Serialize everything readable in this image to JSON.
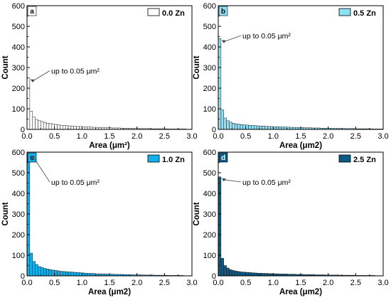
{
  "chart_data": [
    {
      "type": "bar",
      "panel_label": "a",
      "legend": "0.0 Zn",
      "color": "#ffffff",
      "annotation": "up to 0.05 μm²",
      "xlabel": "Area (μm²)",
      "ylabel": "Count",
      "xlim": [
        0,
        3
      ],
      "ylim": [
        0,
        600
      ],
      "xticks": [
        "0.0",
        "0.5",
        "1.0",
        "1.5",
        "2.0",
        "2.5",
        "3.0"
      ],
      "yticks": [
        "0",
        "100",
        "200",
        "300",
        "400",
        "500",
        "600"
      ],
      "bin_width": 0.05,
      "values": [
        250,
        88,
        60,
        48,
        42,
        38,
        34,
        30,
        28,
        26,
        24,
        22,
        20,
        19,
        18,
        17,
        16,
        15,
        14,
        14,
        13,
        12,
        12,
        11,
        10,
        10,
        9,
        9,
        8,
        8,
        8,
        7,
        7,
        7,
        6,
        6,
        6,
        5,
        5,
        5,
        5,
        4,
        4,
        4,
        4,
        3,
        3,
        3,
        3,
        3,
        3,
        2,
        2,
        2,
        2,
        2,
        2,
        2,
        1,
        1
      ]
    },
    {
      "type": "bar",
      "panel_label": "b",
      "legend": "0.5 Zn",
      "color": "#8fe0f5",
      "annotation": "up to 0.05 μm²",
      "xlabel": "Area (μm2)",
      "ylabel": "Count",
      "xlim": [
        0,
        3
      ],
      "ylim": [
        0,
        600
      ],
      "xticks": [
        "0.0",
        "0.5",
        "1.0",
        "1.5",
        "2.0",
        "2.5",
        "3.0"
      ],
      "yticks": [
        "0",
        "100",
        "200",
        "300",
        "400",
        "500",
        "600"
      ],
      "bin_width": 0.05,
      "values": [
        440,
        95,
        55,
        42,
        35,
        30,
        27,
        25,
        23,
        22,
        21,
        20,
        19,
        18,
        17,
        16,
        16,
        15,
        14,
        14,
        13,
        13,
        12,
        12,
        11,
        11,
        10,
        10,
        9,
        9,
        9,
        8,
        8,
        8,
        7,
        7,
        7,
        6,
        6,
        6,
        6,
        5,
        5,
        5,
        5,
        4,
        4,
        4,
        4,
        4,
        3,
        3,
        3,
        3,
        3,
        3,
        2,
        2,
        2,
        2
      ]
    },
    {
      "type": "bar",
      "panel_label": "c",
      "legend": "1.0 Zn",
      "color": "#12b0ea",
      "annotation": "up to 0.05 μm²",
      "xlabel": "Area (μm2)",
      "ylabel": "Count",
      "xlim": [
        0,
        3
      ],
      "ylim": [
        0,
        600
      ],
      "xticks": [
        "0.0",
        "0.5",
        "1.0",
        "1.5",
        "2.0",
        "2.5",
        "3.0"
      ],
      "yticks": [
        "0",
        "100",
        "200",
        "300",
        "400",
        "500",
        "600"
      ],
      "bin_width": 0.05,
      "values": [
        590,
        110,
        70,
        55,
        45,
        40,
        36,
        33,
        30,
        28,
        26,
        24,
        22,
        21,
        20,
        19,
        18,
        17,
        16,
        15,
        14,
        13,
        12,
        12,
        11,
        10,
        10,
        9,
        9,
        8,
        8,
        8,
        7,
        7,
        7,
        6,
        6,
        6,
        5,
        5,
        5,
        5,
        4,
        4,
        4,
        4,
        3,
        3,
        3,
        3,
        3,
        2,
        2,
        2,
        2,
        2,
        2,
        1,
        1,
        1
      ]
    },
    {
      "type": "bar",
      "panel_label": "d",
      "legend": "2.5 Zn",
      "color": "#0d5a86",
      "annotation": "up to 0.05 μm²",
      "xlabel": "Area (μm2)",
      "ylabel": "Count",
      "xlim": [
        0,
        3
      ],
      "ylim": [
        0,
        600
      ],
      "xticks": [
        "0.0",
        "0.5",
        "1.0",
        "1.5",
        "2.0",
        "2.5",
        "3.0"
      ],
      "yticks": [
        "0",
        "100",
        "200",
        "300",
        "400",
        "500",
        "600"
      ],
      "bin_width": 0.05,
      "values": [
        480,
        85,
        50,
        38,
        30,
        26,
        23,
        21,
        19,
        18,
        17,
        16,
        15,
        14,
        13,
        13,
        12,
        12,
        11,
        11,
        10,
        10,
        9,
        9,
        9,
        8,
        8,
        8,
        7,
        7,
        7,
        6,
        6,
        6,
        6,
        5,
        5,
        5,
        5,
        4,
        4,
        4,
        4,
        4,
        3,
        3,
        3,
        3,
        3,
        3,
        2,
        2,
        2,
        2,
        2,
        2,
        2,
        1,
        1,
        1
      ]
    }
  ]
}
